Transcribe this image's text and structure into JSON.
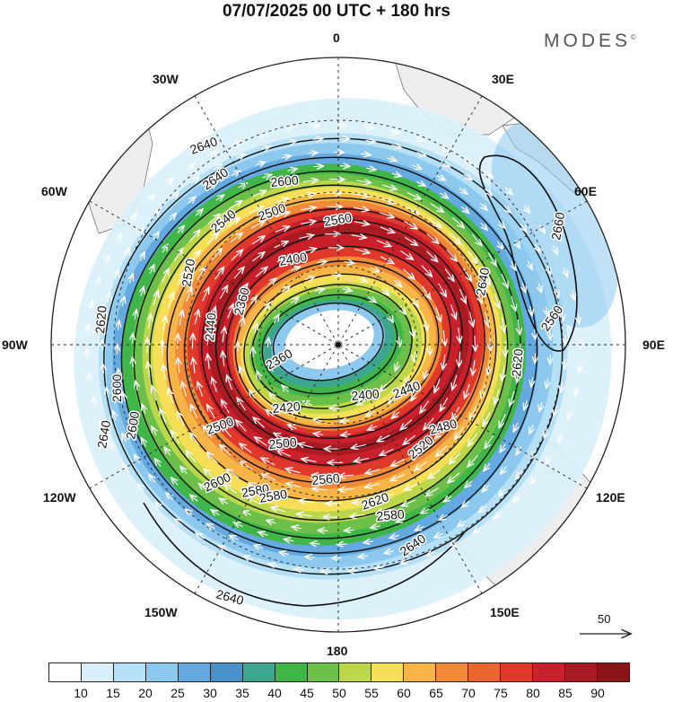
{
  "header": {
    "title": "07/07/2025  00 UTC  + 180 hrs",
    "brand": "MODES",
    "brand_mark": "©"
  },
  "map": {
    "projection": "south-polar-stereographic",
    "longitude_labels": [
      {
        "id": "0",
        "text": "0"
      },
      {
        "id": "30e",
        "text": "30E"
      },
      {
        "id": "60e",
        "text": "60E"
      },
      {
        "id": "90e",
        "text": "90E"
      },
      {
        "id": "120e",
        "text": "120E"
      },
      {
        "id": "150e",
        "text": "150E"
      },
      {
        "id": "180",
        "text": "180"
      },
      {
        "id": "150w",
        "text": "150W"
      },
      {
        "id": "120w",
        "text": "120W"
      },
      {
        "id": "90w",
        "text": "90W"
      },
      {
        "id": "60w",
        "text": "60W"
      },
      {
        "id": "30w",
        "text": "30W"
      }
    ],
    "contour_labels": [
      "2640",
      "2600",
      "2560",
      "2540",
      "2500",
      "2400",
      "2360",
      "2520",
      "2620",
      "2440",
      "2360",
      "2400",
      "2420",
      "2440",
      "2480",
      "2500",
      "2520",
      "2500",
      "2560",
      "2580",
      "2600",
      "2620",
      "2640",
      "2600",
      "2640",
      "2620",
      "2640",
      "2660",
      "2640",
      "2560",
      "2600",
      "2580",
      "2580",
      "2640"
    ],
    "reference_vector": {
      "label": "50",
      "icon": "arrow-right-icon"
    }
  },
  "colorbar": {
    "colors": [
      "#ffffff",
      "#d9f0fb",
      "#b5e0f6",
      "#8dc8ee",
      "#64a9df",
      "#4a90cb",
      "#3ea58f",
      "#40b649",
      "#6cc04a",
      "#bcd84a",
      "#f6df56",
      "#f7b547",
      "#f08a38",
      "#ea6530",
      "#e0382b",
      "#c9202b",
      "#a81b23",
      "#8a1418"
    ],
    "labels": [
      "10",
      "15",
      "20",
      "25",
      "30",
      "35",
      "40",
      "45",
      "50",
      "55",
      "60",
      "65",
      "70",
      "75",
      "80",
      "85",
      "90"
    ]
  }
}
